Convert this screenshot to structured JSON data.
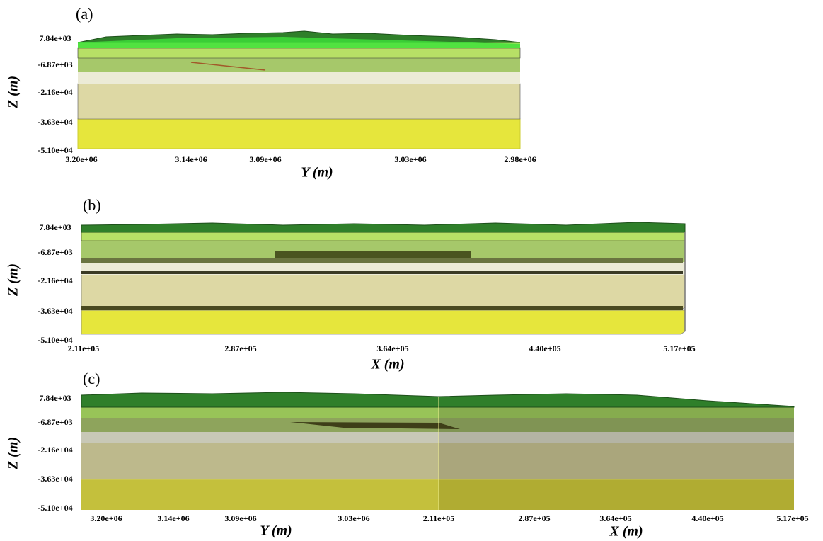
{
  "panels": [
    {
      "label": "(a)",
      "z_label": "Z (m)",
      "z_ticks": [
        "7.84e+03",
        "-6.87e+03",
        "-2.16e+04",
        "-3.63e+04",
        "-5.10e+04"
      ],
      "h_ticks": [
        "3.20e+06",
        "3.14e+06",
        "3.09e+06",
        "3.03e+06",
        "2.98e+06"
      ],
      "h_labels": [
        "Y (m)"
      ]
    },
    {
      "label": "(b)",
      "z_label": "Z (m)",
      "z_ticks": [
        "7.84e+03",
        "-6.87e+03",
        "-2.16e+04",
        "-3.63e+04",
        "-5.10e+04"
      ],
      "h_ticks": [
        "2.11e+05",
        "2.87e+05",
        "3.64e+05",
        "4.40e+05",
        "5.17e+05"
      ],
      "h_labels": [
        "X (m)"
      ]
    },
    {
      "label": "(c)",
      "z_label": "Z (m)",
      "z_ticks": [
        "7.84e+03",
        "-6.87e+03",
        "-2.16e+04",
        "-3.63e+04",
        "-5.10e+04"
      ],
      "h_ticks": [
        "3.20e+06",
        "3.14e+06",
        "3.09e+06",
        "3.03e+06",
        "2.11e+05",
        "2.87e+05",
        "3.64e+05",
        "4.40e+05",
        "5.17e+05"
      ],
      "h_labels": [
        "Y (m)",
        "X (m)"
      ]
    }
  ]
}
